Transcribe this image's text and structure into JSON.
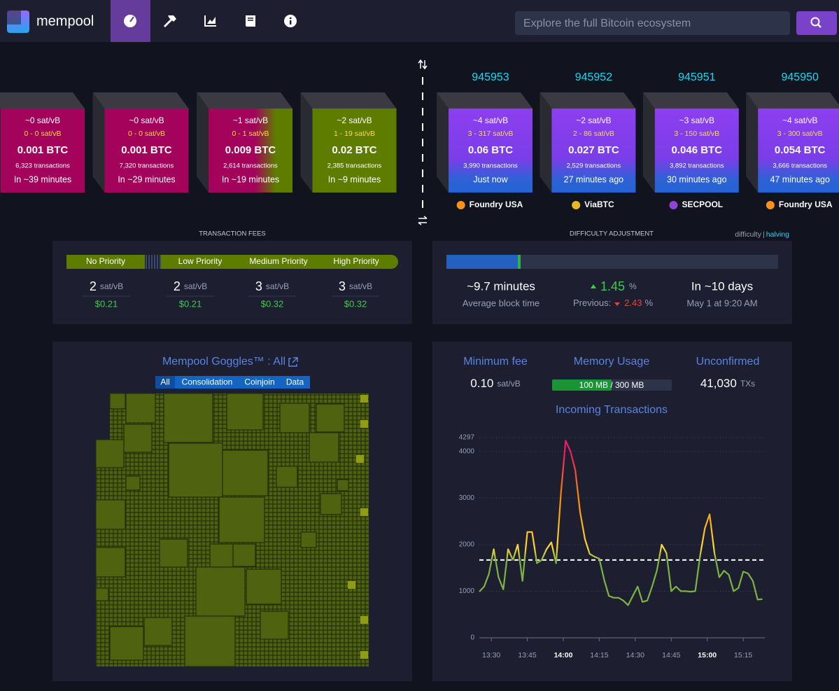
{
  "header": {
    "logo": "mempool",
    "search_placeholder": "Explore the full Bitcoin ecosystem"
  },
  "mempool_blocks": [
    {
      "fee": "~0 sat/vB",
      "range": "0 - 0 sat/vB",
      "total": "0.001 BTC",
      "txs": "6,323 transactions",
      "eta": "In ~39 minutes",
      "colors": [
        "#a3035a"
      ]
    },
    {
      "fee": "~0 sat/vB",
      "range": "0 - 0 sat/vB",
      "total": "0.001 BTC",
      "txs": "7,320 transactions",
      "eta": "In ~29 minutes",
      "colors": [
        "#a3035a"
      ]
    },
    {
      "fee": "~1 sat/vB",
      "range": "0 - 1 sat/vB",
      "total": "0.009 BTC",
      "txs": "2,614 transactions",
      "eta": "In ~19 minutes",
      "colors": [
        "#a3035a",
        "#5e7c00"
      ]
    },
    {
      "fee": "~2 sat/vB",
      "range": "1 - 19 sat/vB",
      "total": "0.02 BTC",
      "txs": "2,385 transactions",
      "eta": "In ~9 minutes",
      "colors": [
        "#5e7c00"
      ]
    }
  ],
  "blocks": [
    {
      "height": "945953",
      "fee": "~4 sat/vB",
      "range": "3 - 317 sat/vB",
      "total": "0.06 BTC",
      "txs": "3,990 transactions",
      "time": "Just now",
      "pool": "Foundry USA",
      "pool_color": "#f7931a"
    },
    {
      "height": "945952",
      "fee": "~2 sat/vB",
      "range": "2 - 86 sat/vB",
      "total": "0.027 BTC",
      "txs": "2,529 transactions",
      "time": "27 minutes ago",
      "pool": "ViaBTC",
      "pool_color": "#e8b923"
    },
    {
      "height": "945951",
      "fee": "~3 sat/vB",
      "range": "3 - 150 sat/vB",
      "total": "0.046 BTC",
      "txs": "3,892 transactions",
      "time": "30 minutes ago",
      "pool": "SECPOOL",
      "pool_color": "#8e44d6"
    },
    {
      "height": "945950",
      "fee": "~4 sat/vB",
      "range": "3 - 300 sat/vB",
      "total": "0.054 BTC",
      "txs": "3,666 transactions",
      "time": "47 minutes ago",
      "pool": "Foundry USA",
      "pool_color": "#f7931a"
    }
  ],
  "fees": {
    "title": "TRANSACTION FEES",
    "priorities": [
      "No Priority",
      "Low Priority",
      "Medium Priority",
      "High Priority"
    ],
    "rates": [
      {
        "value": "2",
        "unit": "sat/vB",
        "usd": "$0.21"
      },
      {
        "value": "2",
        "unit": "sat/vB",
        "usd": "$0.21"
      },
      {
        "value": "3",
        "unit": "sat/vB",
        "usd": "$0.32"
      },
      {
        "value": "3",
        "unit": "sat/vB",
        "usd": "$0.32"
      }
    ]
  },
  "difficulty": {
    "title": "DIFFICULTY ADJUSTMENT",
    "link_difficulty": "difficulty",
    "separator": "|",
    "link_halving": "halving",
    "block_time": "~9.7 minutes",
    "block_time_label": "Average block time",
    "change": "1.45",
    "change_unit": "%",
    "previous_label": "Previous:",
    "previous": "2.43",
    "previous_unit": "%",
    "eta": "In ~10 days",
    "eta_date": "May 1 at 9:20 AM"
  },
  "goggles": {
    "title": "Mempool Goggles™ : All",
    "filters": [
      "All",
      "Consolidation",
      "Coinjoin",
      "Data"
    ]
  },
  "stats": {
    "min_fee_label": "Minimum fee",
    "min_fee": "0.10",
    "min_fee_unit": "sat/vB",
    "memory_label": "Memory Usage",
    "memory": "100 MB / 300 MB",
    "unconfirmed_label": "Unconfirmed",
    "unconfirmed": "41,030",
    "unconfirmed_unit": "TXs"
  },
  "chart_data": {
    "type": "line",
    "title": "Incoming Transactions",
    "x": [
      "13:25",
      "13:27",
      "13:29",
      "13:31",
      "13:33",
      "13:35",
      "13:37",
      "13:39",
      "13:41",
      "13:43",
      "13:45",
      "13:47",
      "13:49",
      "13:51",
      "13:53",
      "13:55",
      "13:57",
      "13:59",
      "14:01",
      "14:03",
      "14:05",
      "14:07",
      "14:09",
      "14:11",
      "14:13",
      "14:15",
      "14:17",
      "14:19",
      "14:21",
      "14:23",
      "14:25",
      "14:27",
      "14:29",
      "14:31",
      "14:33",
      "14:35",
      "14:37",
      "14:39",
      "14:41",
      "14:43",
      "14:45",
      "14:47",
      "14:49",
      "14:51",
      "14:53",
      "14:55",
      "14:57",
      "14:59",
      "15:01",
      "15:03",
      "15:05",
      "15:07",
      "15:09",
      "15:11",
      "15:13",
      "15:15",
      "15:17",
      "15:19",
      "15:21",
      "15:23"
    ],
    "series": [
      {
        "colors": [
          "#7cb342",
          "#fdd835",
          "#fb8c00",
          "#e91e63"
        ],
        "values": [
          990,
          1100,
          1370,
          1900,
          1300,
          1040,
          1900,
          1670,
          2000,
          1220,
          2270,
          2270,
          1600,
          1670,
          1900,
          2050,
          1600,
          3100,
          4230,
          4000,
          3600,
          2700,
          2120,
          1800,
          1740,
          1700,
          1250,
          900,
          860,
          860,
          800,
          700,
          900,
          1100,
          770,
          800,
          1100,
          1440,
          2000,
          1820,
          1000,
          1100,
          1000,
          1000,
          990,
          1000,
          1750,
          2350,
          2650,
          1820,
          1300,
          1440,
          1350,
          1000,
          1070,
          1420,
          1380,
          1220,
          820,
          830
        ]
      }
    ],
    "threshold": 1670,
    "xlim": [
      "13:25",
      "15:24"
    ],
    "xticks": [
      "13:30",
      "13:45",
      "14:00",
      "14:15",
      "14:30",
      "14:45",
      "15:00",
      "15:15"
    ],
    "xticks_bold": [
      false,
      false,
      true,
      false,
      false,
      false,
      true,
      false
    ],
    "ylim": [
      0,
      4297
    ],
    "yticks": [
      0,
      1000,
      2000,
      3000,
      4000,
      4297
    ],
    "grid": true
  }
}
